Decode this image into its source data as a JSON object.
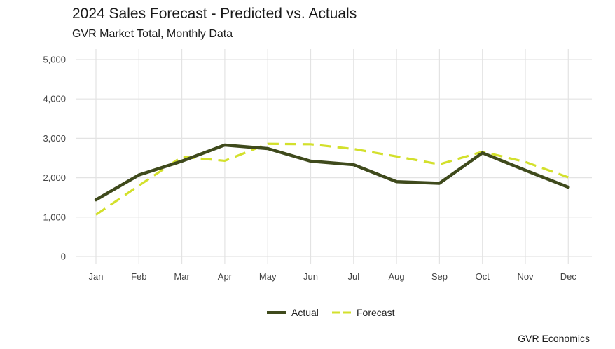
{
  "chart_data": {
    "type": "line",
    "title": "2024 Sales Forecast - Predicted vs. Actuals",
    "subtitle": "GVR Market Total, Monthly Data",
    "caption": "GVR Economics",
    "categories": [
      "Jan",
      "Feb",
      "Mar",
      "Apr",
      "May",
      "Jun",
      "Jul",
      "Aug",
      "Sep",
      "Oct",
      "Nov",
      "Dec"
    ],
    "series": [
      {
        "name": "Actual",
        "values": [
          1440,
          2070,
          2420,
          2830,
          2740,
          2420,
          2330,
          1900,
          1860,
          2630,
          2190,
          1760
        ],
        "color": "#3f4a1c",
        "style": "solid"
      },
      {
        "name": "Forecast",
        "values": [
          1060,
          1800,
          2530,
          2430,
          2860,
          2850,
          2730,
          2540,
          2340,
          2660,
          2400,
          2010
        ],
        "color": "#d3e02c",
        "style": "dashed"
      }
    ],
    "ylim": [
      0,
      5000
    ],
    "yticks": [
      "0",
      "1,000",
      "2,000",
      "3,000",
      "4,000",
      "5,000"
    ],
    "ytick_values": [
      0,
      1000,
      2000,
      3000,
      4000,
      5000
    ],
    "grid": true,
    "legend": "bottom"
  }
}
